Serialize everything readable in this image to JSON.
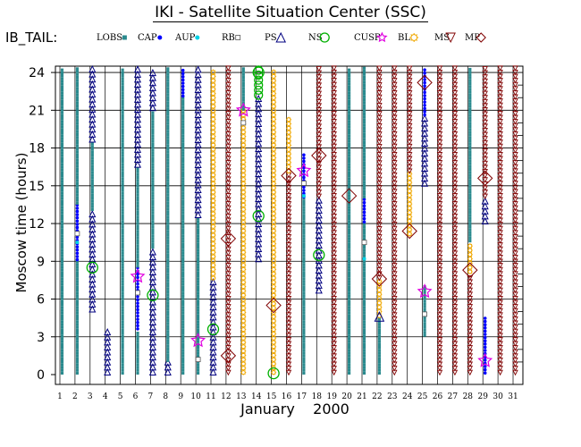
{
  "title": "IKI - Satellite Situation Center (SSC)",
  "legend_title": "IB_TAIL:",
  "legend": [
    {
      "key": "LOBS",
      "label": "LOBS",
      "marker": "square",
      "color": "#2a8a8e"
    },
    {
      "key": "CAP",
      "label": "CAP",
      "marker": "dot",
      "color": "#0000ff"
    },
    {
      "key": "AUP",
      "label": "AUP",
      "marker": "dot",
      "color": "#00d2e6"
    },
    {
      "key": "RB",
      "label": "RB",
      "marker": "hollow-square",
      "color": "#555555"
    },
    {
      "key": "PS",
      "label": "PS",
      "marker": "triangle",
      "color": "#000080"
    },
    {
      "key": "NS",
      "label": "NS",
      "marker": "circle",
      "color": "#00b000"
    },
    {
      "key": "CUSP",
      "label": "CUSP",
      "marker": "star",
      "color": "#e000e0"
    },
    {
      "key": "BL",
      "label": "BL",
      "marker": "sun",
      "color": "#f0a800"
    },
    {
      "key": "MS",
      "label": "MS",
      "marker": "down-triangle",
      "color": "#800000"
    },
    {
      "key": "MP",
      "label": "MP",
      "marker": "diamond",
      "color": "#800000"
    }
  ],
  "chart_data": {
    "type": "scatter",
    "title": "IKI - Satellite Situation Center (SSC)",
    "xlabel": "January    2000",
    "ylabel": "Moscow time (hours)",
    "xlim": [
      1,
      31
    ],
    "ylim": [
      0,
      24
    ],
    "xticks": [
      1,
      2,
      3,
      4,
      5,
      6,
      7,
      8,
      9,
      10,
      11,
      12,
      13,
      14,
      15,
      16,
      17,
      18,
      19,
      20,
      21,
      22,
      23,
      24,
      25,
      26,
      27,
      28,
      29,
      30,
      31
    ],
    "yticks": [
      0,
      3,
      6,
      9,
      12,
      15,
      18,
      21,
      24
    ],
    "grid": true,
    "tracks": [
      {
        "day": 1,
        "segments": [
          {
            "region": "LOBS",
            "from": 0,
            "to": 24.5
          }
        ]
      },
      {
        "day": 2,
        "segments": [
          {
            "region": "LOBS",
            "from": 0,
            "to": 9
          },
          {
            "region": "CAP",
            "from": 9,
            "to": 13.5
          },
          {
            "region": "LOBS",
            "from": 13.5,
            "to": 24.5
          }
        ]
      },
      {
        "day": 3,
        "segments": [
          {
            "region": "PS",
            "from": 5,
            "to": 13
          },
          {
            "region": "LOBS",
            "from": 13,
            "to": 18.5
          },
          {
            "region": "PS",
            "from": 18.5,
            "to": 24.5
          }
        ]
      },
      {
        "day": 4,
        "segments": [
          {
            "region": "PS",
            "from": 0,
            "to": 3.5
          }
        ]
      },
      {
        "day": 5,
        "segments": [
          {
            "region": "LOBS",
            "from": 0,
            "to": 24.5
          }
        ]
      },
      {
        "day": 6,
        "segments": [
          {
            "region": "LOBS",
            "from": 0,
            "to": 3.5
          },
          {
            "region": "CAP",
            "from": 3.5,
            "to": 8.5
          },
          {
            "region": "LOBS",
            "from": 8.5,
            "to": 16.5
          },
          {
            "region": "PS",
            "from": 16.5,
            "to": 24.5
          }
        ]
      },
      {
        "day": 7,
        "segments": [
          {
            "region": "PS",
            "from": 0,
            "to": 10
          },
          {
            "region": "LOBS",
            "from": 10,
            "to": 21
          },
          {
            "region": "PS",
            "from": 21,
            "to": 24.5
          }
        ]
      },
      {
        "day": 8,
        "segments": [
          {
            "region": "PS",
            "from": 0,
            "to": 1
          },
          {
            "region": "LOBS",
            "from": 1,
            "to": 24.5
          }
        ]
      },
      {
        "day": 9,
        "segments": [
          {
            "region": "LOBS",
            "from": 0,
            "to": 22
          },
          {
            "region": "CAP",
            "from": 22,
            "to": 24.5
          }
        ]
      },
      {
        "day": 10,
        "segments": [
          {
            "region": "LOBS",
            "from": 0,
            "to": 12.5
          },
          {
            "region": "PS",
            "from": 12.5,
            "to": 24.5
          }
        ]
      },
      {
        "day": 11,
        "segments": [
          {
            "region": "PS",
            "from": 0,
            "to": 7.5
          },
          {
            "region": "BL",
            "from": 7.5,
            "to": 24.5
          }
        ]
      },
      {
        "day": 12,
        "segments": [
          {
            "region": "MS",
            "from": 0,
            "to": 24.5
          }
        ]
      },
      {
        "day": 13,
        "segments": [
          {
            "region": "BL",
            "from": 0,
            "to": 21
          },
          {
            "region": "LOBS",
            "from": 21,
            "to": 24.5
          }
        ]
      },
      {
        "day": 14,
        "segments": [
          {
            "region": "PS",
            "from": 9,
            "to": 22
          },
          {
            "region": "NS",
            "from": 22,
            "to": 24.5
          }
        ]
      },
      {
        "day": 15,
        "segments": [
          {
            "region": "BL",
            "from": 0,
            "to": 24.5
          }
        ]
      },
      {
        "day": 16,
        "segments": [
          {
            "region": "MS",
            "from": 0,
            "to": 16
          },
          {
            "region": "BL",
            "from": 16,
            "to": 20.5
          }
        ]
      },
      {
        "day": 17,
        "segments": [
          {
            "region": "LOBS",
            "from": 0,
            "to": 14
          },
          {
            "region": "CAP",
            "from": 14,
            "to": 17.5
          }
        ]
      },
      {
        "day": 18,
        "segments": [
          {
            "region": "PS",
            "from": 6.5,
            "to": 14
          },
          {
            "region": "MS",
            "from": 14,
            "to": 24.5
          }
        ]
      },
      {
        "day": 19,
        "segments": [
          {
            "region": "MS",
            "from": 0,
            "to": 24.5
          }
        ]
      },
      {
        "day": 20,
        "segments": [
          {
            "region": "LOBS",
            "from": 0,
            "to": 24.5
          }
        ]
      },
      {
        "day": 21,
        "segments": [
          {
            "region": "LOBS",
            "from": 0,
            "to": 12
          },
          {
            "region": "CAP",
            "from": 12,
            "to": 14
          },
          {
            "region": "LOBS",
            "from": 14,
            "to": 24.5
          }
        ]
      },
      {
        "day": 22,
        "segments": [
          {
            "region": "LOBS",
            "from": 0,
            "to": 4.5
          },
          {
            "region": "BL",
            "from": 4.5,
            "to": 7.5
          },
          {
            "region": "MS",
            "from": 7.5,
            "to": 24.5
          }
        ]
      },
      {
        "day": 23,
        "segments": [
          {
            "region": "MS",
            "from": 0,
            "to": 24.5
          }
        ]
      },
      {
        "day": 24,
        "segments": [
          {
            "region": "BL",
            "from": 11,
            "to": 16
          },
          {
            "region": "MS",
            "from": 16,
            "to": 24.5
          }
        ]
      },
      {
        "day": 25,
        "segments": [
          {
            "region": "LOBS",
            "from": 3,
            "to": 7
          },
          {
            "region": "PS",
            "from": 15,
            "to": 20.5
          },
          {
            "region": "CAP",
            "from": 20.5,
            "to": 24.5
          }
        ]
      },
      {
        "day": 26,
        "segments": [
          {
            "region": "MS",
            "from": 0,
            "to": 24.5
          }
        ]
      },
      {
        "day": 27,
        "segments": [
          {
            "region": "MS",
            "from": 0,
            "to": 24.5
          }
        ]
      },
      {
        "day": 28,
        "segments": [
          {
            "region": "MS",
            "from": 0,
            "to": 8
          },
          {
            "region": "BL",
            "from": 8,
            "to": 10.5
          },
          {
            "region": "LOBS",
            "from": 10.5,
            "to": 24.5
          }
        ]
      },
      {
        "day": 29,
        "segments": [
          {
            "region": "CAP",
            "from": 0,
            "to": 4.5
          },
          {
            "region": "PS",
            "from": 12,
            "to": 14
          },
          {
            "region": "MS",
            "from": 14,
            "to": 24.5
          }
        ]
      },
      {
        "day": 30,
        "segments": [
          {
            "region": "MS",
            "from": 0,
            "to": 24.5
          }
        ]
      },
      {
        "day": 31,
        "segments": [
          {
            "region": "MS",
            "from": 0,
            "to": 24.5
          }
        ]
      }
    ],
    "events": [
      {
        "region": "AUP",
        "day": 2,
        "hour": 10.5
      },
      {
        "region": "RB",
        "day": 2,
        "hour": 11.2
      },
      {
        "region": "NS",
        "day": 3,
        "hour": 8.5
      },
      {
        "region": "CUSP",
        "day": 6,
        "hour": 7.8
      },
      {
        "region": "RB",
        "day": 6,
        "hour": 6.5
      },
      {
        "region": "NS",
        "day": 7,
        "hour": 6.3
      },
      {
        "region": "CUSP",
        "day": 10,
        "hour": 2.7
      },
      {
        "region": "RB",
        "day": 10,
        "hour": 1.2
      },
      {
        "region": "NS",
        "day": 11,
        "hour": 3.6
      },
      {
        "region": "MP",
        "day": 12,
        "hour": 1.5
      },
      {
        "region": "MP",
        "day": 12,
        "hour": 10.8
      },
      {
        "region": "CUSP",
        "day": 13,
        "hour": 21
      },
      {
        "region": "RB",
        "day": 13,
        "hour": 20
      },
      {
        "region": "NS",
        "day": 14,
        "hour": 12.6
      },
      {
        "region": "NS",
        "day": 14,
        "hour": 24
      },
      {
        "region": "MP",
        "day": 15,
        "hour": 5.5
      },
      {
        "region": "NS",
        "day": 15,
        "hour": 0.1
      },
      {
        "region": "MP",
        "day": 16,
        "hour": 15.8
      },
      {
        "region": "CUSP",
        "day": 17,
        "hour": 16.2
      },
      {
        "region": "AUP",
        "day": 17,
        "hour": 14.2
      },
      {
        "region": "RB",
        "day": 17,
        "hour": 15.2
      },
      {
        "region": "NS",
        "day": 18,
        "hour": 9.5
      },
      {
        "region": "MP",
        "day": 18,
        "hour": 17.4
      },
      {
        "region": "MP",
        "day": 20,
        "hour": 14.2
      },
      {
        "region": "AUP",
        "day": 21,
        "hour": 9.2
      },
      {
        "region": "RB",
        "day": 21,
        "hour": 10.5
      },
      {
        "region": "MP",
        "day": 22,
        "hour": 7.6
      },
      {
        "region": "PS",
        "day": 22,
        "hour": 4.6
      },
      {
        "region": "MP",
        "day": 24,
        "hour": 11.4
      },
      {
        "region": "CUSP",
        "day": 25,
        "hour": 6.6
      },
      {
        "region": "MP",
        "day": 25,
        "hour": 23.2
      },
      {
        "region": "RB",
        "day": 25,
        "hour": 4.8
      },
      {
        "region": "MP",
        "day": 28,
        "hour": 8.3
      },
      {
        "region": "MP",
        "day": 29,
        "hour": 15.6
      },
      {
        "region": "CUSP",
        "day": 29,
        "hour": 1.1
      }
    ]
  }
}
